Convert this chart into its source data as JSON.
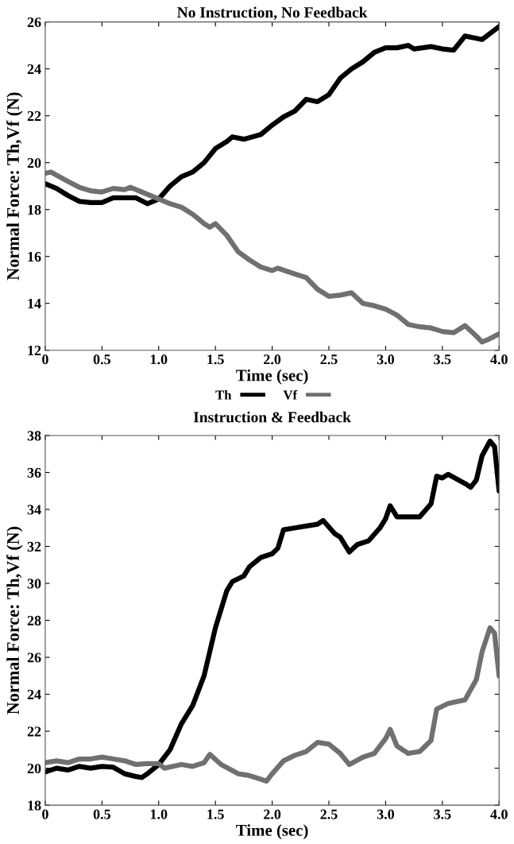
{
  "chart_data": [
    {
      "type": "line",
      "title": "No Instruction, No Feedback",
      "xlabel": "Time (sec)",
      "ylabel": "Normal Force: Th,Vf (N)",
      "xlim": [
        0,
        4.0
      ],
      "xticks": [
        0,
        {
          "value": 0.5,
          "label": "0.5"
        },
        {
          "value": 1.0,
          "label": "1.0"
        },
        {
          "value": 1.5,
          "label": "1.5"
        },
        {
          "value": 2.0,
          "label": "2.0"
        },
        {
          "value": 2.5,
          "label": "2.5"
        },
        {
          "value": 3.0,
          "label": "3.0"
        },
        {
          "value": 3.5,
          "label": "3.5"
        },
        {
          "value": 4.0,
          "label": "4.0"
        }
      ],
      "ylim": [
        12,
        26
      ],
      "yticks": [
        12,
        14,
        16,
        18,
        20,
        22,
        24,
        26
      ],
      "grid": false,
      "legend": "bottom",
      "marker": "none",
      "line_style": "solid",
      "series": [
        {
          "name": "Th",
          "color": "#000000",
          "x": [
            0,
            0.1,
            0.2,
            0.3,
            0.4,
            0.5,
            0.6,
            0.7,
            0.8,
            0.9,
            1.0,
            1.1,
            1.2,
            1.3,
            1.4,
            1.5,
            1.6,
            1.65,
            1.75,
            1.9,
            2.0,
            2.1,
            2.2,
            2.3,
            2.4,
            2.5,
            2.6,
            2.7,
            2.8,
            2.9,
            3.0,
            3.1,
            3.2,
            3.25,
            3.4,
            3.5,
            3.6,
            3.7,
            3.8,
            3.85,
            4.0
          ],
          "values": [
            19.1,
            18.9,
            18.6,
            18.35,
            18.3,
            18.3,
            18.5,
            18.5,
            18.5,
            18.25,
            18.45,
            19.0,
            19.4,
            19.6,
            20.0,
            20.6,
            20.9,
            21.1,
            21.0,
            21.2,
            21.6,
            21.95,
            22.2,
            22.7,
            22.6,
            22.9,
            23.6,
            24.0,
            24.3,
            24.7,
            24.9,
            24.9,
            25.0,
            24.85,
            24.95,
            24.85,
            24.8,
            25.4,
            25.3,
            25.25,
            25.8
          ]
        },
        {
          "name": "Vf",
          "color": "#707070",
          "x": [
            0,
            0.05,
            0.2,
            0.3,
            0.4,
            0.5,
            0.6,
            0.7,
            0.75,
            0.9,
            1.0,
            1.1,
            1.2,
            1.3,
            1.4,
            1.45,
            1.5,
            1.6,
            1.7,
            1.8,
            1.9,
            2.0,
            2.05,
            2.2,
            2.3,
            2.4,
            2.5,
            2.6,
            2.7,
            2.8,
            2.9,
            3.0,
            3.1,
            3.2,
            3.3,
            3.4,
            3.5,
            3.6,
            3.7,
            3.8,
            3.85,
            3.9,
            4.0
          ],
          "values": [
            19.55,
            19.6,
            19.2,
            18.95,
            18.8,
            18.75,
            18.9,
            18.85,
            18.95,
            18.65,
            18.45,
            18.25,
            18.1,
            17.8,
            17.4,
            17.25,
            17.4,
            16.9,
            16.2,
            15.85,
            15.55,
            15.4,
            15.5,
            15.25,
            15.1,
            14.6,
            14.3,
            14.35,
            14.45,
            14.0,
            13.9,
            13.75,
            13.5,
            13.1,
            13.0,
            12.95,
            12.8,
            12.75,
            13.05,
            12.6,
            12.35,
            12.45,
            12.7
          ]
        }
      ]
    },
    {
      "type": "line",
      "title": "Instruction & Feedback",
      "xlabel": "Time (sec)",
      "ylabel": "Normal Force: Th,Vf (N)",
      "xlim": [
        0,
        4.0
      ],
      "xticks": [
        0,
        {
          "value": 0.5,
          "label": "0.5"
        },
        {
          "value": 1.0,
          "label": "1.0"
        },
        {
          "value": 1.5,
          "label": "1.5"
        },
        {
          "value": 2.0,
          "label": "2.0"
        },
        {
          "value": 2.5,
          "label": "2.5"
        },
        {
          "value": 3.0,
          "label": "3.0"
        },
        {
          "value": 3.5,
          "label": "3.5"
        },
        {
          "value": 4.0,
          "label": "4.0"
        }
      ],
      "ylim": [
        18,
        38
      ],
      "yticks": [
        18,
        20,
        22,
        24,
        26,
        28,
        30,
        32,
        34,
        36,
        38
      ],
      "grid": false,
      "marker": "none",
      "line_style": "solid",
      "series": [
        {
          "color": "#000000",
          "x": [
            0,
            0.1,
            0.2,
            0.3,
            0.4,
            0.5,
            0.6,
            0.7,
            0.8,
            0.85,
            0.9,
            1.0,
            1.1,
            1.2,
            1.3,
            1.4,
            1.5,
            1.6,
            1.65,
            1.75,
            1.8,
            1.9,
            2.0,
            2.05,
            2.1,
            2.2,
            2.3,
            2.4,
            2.45,
            2.55,
            2.6,
            2.68,
            2.75,
            2.85,
            2.95,
            3.0,
            3.04,
            3.1,
            3.2,
            3.3,
            3.4,
            3.45,
            3.5,
            3.55,
            3.7,
            3.75,
            3.8,
            3.85,
            3.92,
            3.96,
            4.0
          ],
          "values": [
            19.8,
            20.0,
            19.9,
            20.1,
            20.0,
            20.1,
            20.05,
            19.7,
            19.55,
            19.5,
            19.7,
            20.2,
            21.0,
            22.4,
            23.4,
            25.0,
            27.6,
            29.6,
            30.1,
            30.4,
            30.9,
            31.4,
            31.6,
            31.9,
            32.9,
            33.0,
            33.1,
            33.2,
            33.4,
            32.7,
            32.5,
            31.7,
            32.1,
            32.3,
            33.0,
            33.5,
            34.2,
            33.6,
            33.6,
            33.6,
            34.3,
            35.8,
            35.7,
            35.9,
            35.4,
            35.2,
            35.6,
            36.9,
            37.7,
            37.4,
            35.0
          ]
        },
        {
          "color": "#707070",
          "x": [
            0,
            0.1,
            0.2,
            0.3,
            0.4,
            0.5,
            0.6,
            0.7,
            0.8,
            0.9,
            1.0,
            1.05,
            1.2,
            1.3,
            1.4,
            1.45,
            1.55,
            1.7,
            1.8,
            1.9,
            1.95,
            2.0,
            2.1,
            2.2,
            2.3,
            2.4,
            2.5,
            2.6,
            2.68,
            2.8,
            2.9,
            3.0,
            3.04,
            3.1,
            3.2,
            3.3,
            3.4,
            3.45,
            3.55,
            3.7,
            3.8,
            3.85,
            3.92,
            3.96,
            4.0
          ],
          "values": [
            20.3,
            20.4,
            20.3,
            20.5,
            20.5,
            20.6,
            20.5,
            20.4,
            20.2,
            20.25,
            20.25,
            20.0,
            20.2,
            20.1,
            20.3,
            20.75,
            20.2,
            19.7,
            19.6,
            19.4,
            19.3,
            19.7,
            20.4,
            20.7,
            20.9,
            21.4,
            21.3,
            20.8,
            20.2,
            20.6,
            20.8,
            21.6,
            22.1,
            21.2,
            20.8,
            20.9,
            21.5,
            23.2,
            23.5,
            23.7,
            24.8,
            26.3,
            27.6,
            27.3,
            25.0
          ]
        }
      ]
    }
  ]
}
